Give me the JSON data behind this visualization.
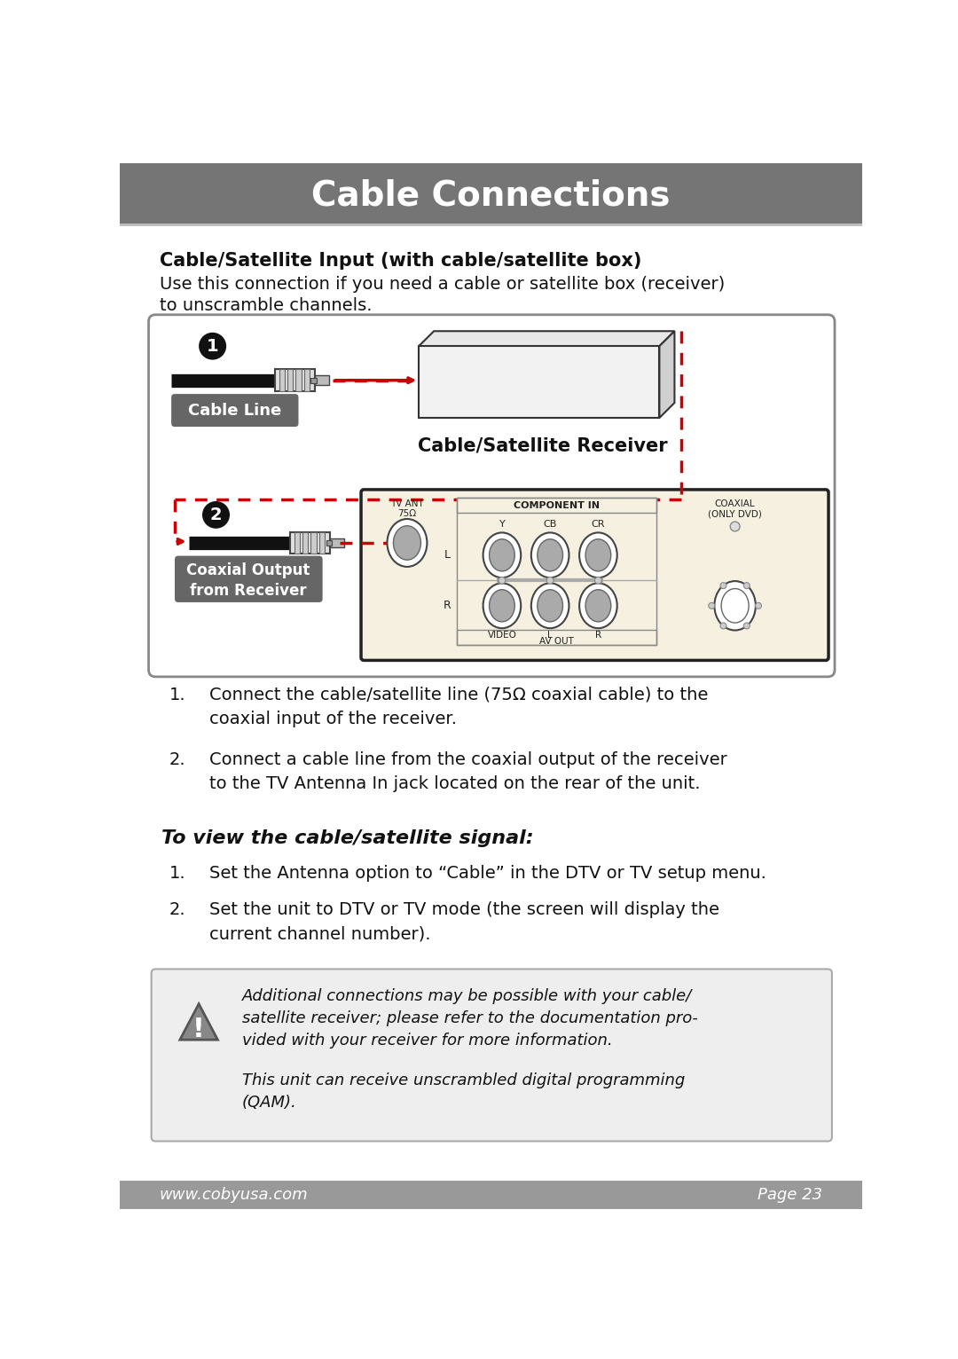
{
  "title": "Cable Connections",
  "title_bg": "#757575",
  "title_color": "#ffffff",
  "footer_bg": "#999999",
  "footer_left": "www.cobyusa.com",
  "footer_right": "Page 23",
  "footer_color": "#ffffff",
  "page_bg": "#ffffff",
  "section_title": "Cable/Satellite Input (with cable/satellite box)",
  "section_desc1": "Use this connection if you need a cable or satellite box (receiver)",
  "section_desc2": "to unscramble channels.",
  "label_cable_line": "Cable Line",
  "label_cable_receiver": "Cable/Satellite Receiver",
  "label_coaxial_output": "Coaxial Output\nfrom Receiver",
  "step1_num": "1.",
  "step1_text": "Connect the cable/satellite line (75Ω coaxial cable) to the\ncoaxial input of the receiver.",
  "step2_num": "2.",
  "step2_text": "Connect a cable line from the coaxial output of the receiver\nto the TV Antenna In jack located on the rear of the unit.",
  "view_title": "To view the cable/satellite signal:",
  "view_step1_num": "1.",
  "view_step1": "Set the Antenna option to “Cable” in the DTV or TV setup menu.",
  "view_step2_num": "2.",
  "view_step2": "Set the unit to DTV or TV mode (the screen will display the\ncurrent channel number).",
  "note_text1": "Additional connections may be possible with your cable/\nsatellite receiver; please refer to the documentation pro-\nvided with your receiver for more information.",
  "note_text2": "This unit can receive unscrambled digital programming\n(QAM).",
  "red": "#cc0000",
  "box_bg": "#f5f0e0"
}
